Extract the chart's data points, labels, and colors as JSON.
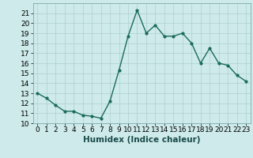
{
  "x": [
    0,
    1,
    2,
    3,
    4,
    5,
    6,
    7,
    8,
    9,
    10,
    11,
    12,
    13,
    14,
    15,
    16,
    17,
    18,
    19,
    20,
    21,
    22,
    23
  ],
  "y": [
    13,
    12.5,
    11.8,
    11.2,
    11.2,
    10.8,
    10.7,
    10.5,
    12.2,
    15.3,
    18.7,
    21.3,
    19.0,
    19.8,
    18.7,
    18.7,
    19.0,
    18.0,
    16.0,
    17.5,
    16.0,
    15.8,
    14.8,
    14.2
  ],
  "line_color": "#1a6b5a",
  "marker": "o",
  "marker_size": 2.0,
  "line_width": 1.0,
  "bg_color": "#ceeaea",
  "grid_color": "#aed0d0",
  "xlabel": "Humidex (Indice chaleur)",
  "xlabel_fontsize": 7.5,
  "tick_fontsize": 6.5,
  "xlim": [
    -0.5,
    23.5
  ],
  "ylim": [
    10,
    22
  ],
  "yticks": [
    10,
    11,
    12,
    13,
    14,
    15,
    16,
    17,
    18,
    19,
    20,
    21
  ],
  "xticks": [
    0,
    1,
    2,
    3,
    4,
    5,
    6,
    7,
    8,
    9,
    10,
    11,
    12,
    13,
    14,
    15,
    16,
    17,
    18,
    19,
    20,
    21,
    22,
    23
  ]
}
